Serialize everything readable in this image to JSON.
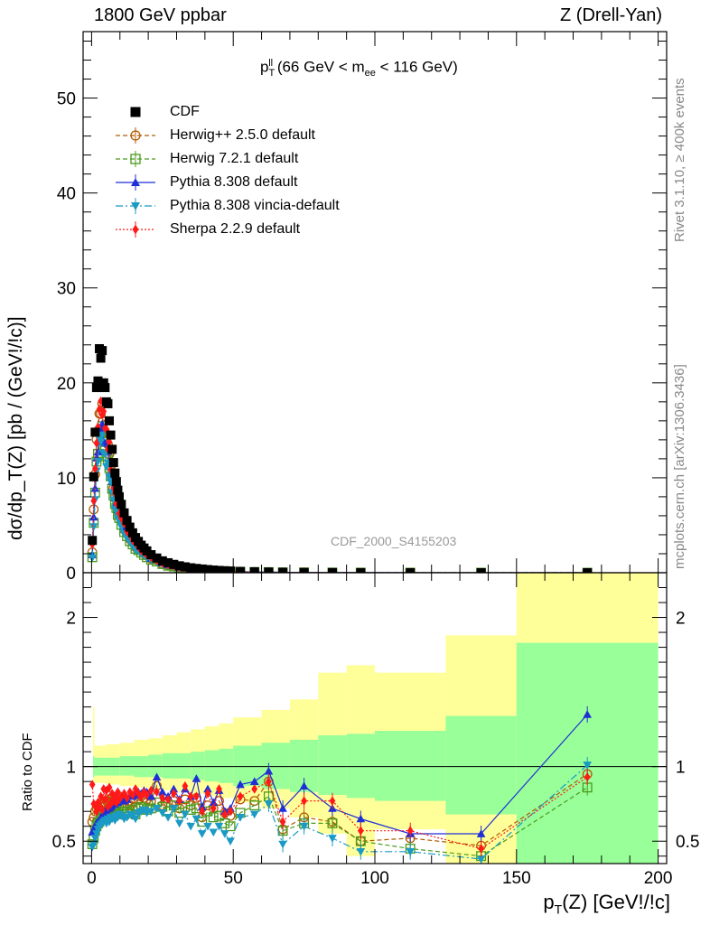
{
  "header": {
    "left": "1800 GeV ppbar",
    "right": "Z (Drell-Yan)"
  },
  "plot_title": {
    "p": "p",
    "sub": "T",
    "sup": "ll",
    "rest_a": " (66 GeV < m",
    "sub2": "ee",
    "rest_b": " < 116 GeV)"
  },
  "side_text": {
    "rivet": "Rivet 3.1.10, ≥ 400k events",
    "mcplots": "mcplots.cern.ch [arXiv:1306.3436]"
  },
  "analysis_id": "CDF_2000_S4155203",
  "colors": {
    "cdf": "#000000",
    "herwigpp": "#b35900",
    "herwig7": "#4a9a1c",
    "pythia": "#1f2fd6",
    "vincia": "#1a9ac4",
    "sherpa": "#ff1a1a",
    "band_inner": "#99ff99",
    "band_outer": "#ffff99"
  },
  "legend": [
    {
      "key": "cdf",
      "label": "CDF"
    },
    {
      "key": "herwigpp",
      "label": "Herwig++ 2.5.0 default"
    },
    {
      "key": "herwig7",
      "label": "Herwig 7.2.1 default"
    },
    {
      "key": "pythia",
      "label": "Pythia 8.308 default"
    },
    {
      "key": "vincia",
      "label": "Pythia 8.308 vincia-default"
    },
    {
      "key": "sherpa",
      "label": "Sherpa 2.2.9 default"
    }
  ],
  "axes": {
    "ylabel_main": "dσ/dp_T(Z) [pb / (GeV!/!c)]",
    "ylabel_ratio": "Ratio to CDF",
    "xlabel_p": "p",
    "xlabel_sub": "T",
    "xlabel_rest": "(Z) [GeV!/!c]"
  },
  "chart_data": {
    "type": "scatter",
    "title": "pT of Z, 66 GeV < m_ee < 116 GeV",
    "xlim": [
      -3,
      203
    ],
    "main": {
      "ylim": [
        0,
        57
      ],
      "yticks": [
        0,
        10,
        20,
        30,
        40,
        50
      ],
      "yticklabels": [
        "0",
        "10",
        "20",
        "30",
        "40",
        "50"
      ]
    },
    "ratio": {
      "ylim": [
        0.35,
        2.3
      ],
      "yticks": [
        0.5,
        1,
        2
      ],
      "yticklabels": [
        "0.5",
        "1",
        "2"
      ]
    },
    "xticks": [
      0,
      50,
      100,
      150,
      200
    ],
    "xticklabels": [
      "0",
      "50",
      "100",
      "150",
      "200"
    ],
    "x": [
      0.25,
      0.75,
      1.25,
      1.75,
      2.25,
      2.75,
      3.25,
      3.75,
      4.25,
      4.75,
      5.25,
      5.75,
      6.25,
      6.75,
      7.25,
      7.75,
      8.25,
      8.75,
      9.25,
      9.75,
      10.5,
      11.5,
      12.5,
      13.5,
      14.5,
      15.5,
      16.5,
      17.5,
      18.5,
      19.5,
      21,
      23,
      25,
      27,
      29,
      31,
      33,
      35,
      37,
      39,
      41,
      43,
      45,
      47,
      49,
      52.5,
      57.5,
      62.5,
      67.5,
      75,
      85,
      95,
      112.5,
      137.5,
      175
    ],
    "cdf_values": [
      3.4,
      10.1,
      14.8,
      19.5,
      20.2,
      23.6,
      22.6,
      23.4,
      20.0,
      19.5,
      18.0,
      17.8,
      16.0,
      14.5,
      13.0,
      11.6,
      10.5,
      9.6,
      8.7,
      8.0,
      7.2,
      6.3,
      5.5,
      4.8,
      4.2,
      3.7,
      3.3,
      2.9,
      2.6,
      2.3,
      1.9,
      1.55,
      1.25,
      1.05,
      0.88,
      0.73,
      0.62,
      0.52,
      0.45,
      0.39,
      0.33,
      0.28,
      0.24,
      0.21,
      0.18,
      0.14,
      0.1,
      0.075,
      0.055,
      0.038,
      0.022,
      0.014,
      0.007,
      0.003,
      0.001
    ],
    "series": [
      {
        "name": "Herwig++ 2.5.0 default",
        "key": "herwigpp",
        "marker": "open-circle",
        "line": "dashed",
        "ratio": [
          0.63,
          0.66,
          0.7,
          0.72,
          0.73,
          0.71,
          0.74,
          0.76,
          0.75,
          0.76,
          0.77,
          0.76,
          0.78,
          0.77,
          0.79,
          0.77,
          0.78,
          0.8,
          0.79,
          0.8,
          0.78,
          0.72,
          0.75,
          0.74,
          0.76,
          0.73,
          0.78,
          0.8,
          0.79,
          0.78,
          0.77,
          0.87,
          0.74,
          0.76,
          0.77,
          0.72,
          0.78,
          0.74,
          0.79,
          0.66,
          0.74,
          0.72,
          0.77,
          0.69,
          0.67,
          0.78,
          0.77,
          0.9,
          0.58,
          0.66,
          0.63,
          0.5,
          0.52,
          0.47,
          0.95
        ]
      },
      {
        "name": "Herwig 7.2.1 default",
        "key": "herwig7",
        "marker": "open-square",
        "line": "dashed",
        "ratio": [
          0.48,
          0.52,
          0.57,
          0.6,
          0.62,
          0.63,
          0.65,
          0.66,
          0.67,
          0.66,
          0.68,
          0.67,
          0.69,
          0.7,
          0.68,
          0.7,
          0.69,
          0.71,
          0.7,
          0.72,
          0.7,
          0.68,
          0.7,
          0.69,
          0.71,
          0.68,
          0.72,
          0.73,
          0.72,
          0.71,
          0.72,
          0.76,
          0.73,
          0.7,
          0.74,
          0.69,
          0.73,
          0.71,
          0.72,
          0.63,
          0.7,
          0.66,
          0.67,
          0.62,
          0.6,
          0.69,
          0.74,
          0.8,
          0.57,
          0.62,
          0.62,
          0.5,
          0.45,
          0.4,
          0.86
        ]
      },
      {
        "name": "Pythia 8.308 default",
        "key": "pythia",
        "marker": "triangle-up",
        "line": "solid",
        "ratio": [
          0.56,
          0.58,
          0.6,
          0.62,
          0.63,
          0.64,
          0.66,
          0.67,
          0.69,
          0.7,
          0.71,
          0.72,
          0.72,
          0.73,
          0.74,
          0.75,
          0.75,
          0.77,
          0.76,
          0.78,
          0.79,
          0.77,
          0.78,
          0.8,
          0.8,
          0.81,
          0.83,
          0.82,
          0.84,
          0.83,
          0.8,
          0.93,
          0.83,
          0.8,
          0.85,
          0.78,
          0.85,
          0.8,
          0.92,
          0.73,
          0.85,
          0.76,
          0.84,
          0.7,
          0.72,
          0.88,
          0.9,
          0.97,
          0.72,
          0.87,
          0.72,
          0.65,
          0.55,
          0.55,
          1.35
        ]
      },
      {
        "name": "Pythia 8.308 vincia-default",
        "key": "vincia",
        "marker": "triangle-down",
        "line": "dashdot",
        "ratio": [
          0.46,
          0.48,
          0.52,
          0.55,
          0.58,
          0.6,
          0.61,
          0.62,
          0.63,
          0.64,
          0.62,
          0.65,
          0.63,
          0.66,
          0.65,
          0.66,
          0.64,
          0.67,
          0.66,
          0.68,
          0.67,
          0.65,
          0.66,
          0.68,
          0.67,
          0.65,
          0.69,
          0.7,
          0.71,
          0.69,
          0.7,
          0.72,
          0.69,
          0.66,
          0.72,
          0.62,
          0.68,
          0.6,
          0.65,
          0.55,
          0.6,
          0.56,
          0.6,
          0.55,
          0.5,
          0.66,
          0.68,
          0.75,
          0.48,
          0.6,
          0.52,
          0.43,
          0.43,
          0.38,
          1.01
        ]
      },
      {
        "name": "Sherpa 2.2.9 default",
        "key": "sherpa",
        "marker": "diamond",
        "line": "dotted",
        "ratio": [
          0.88,
          0.75,
          0.74,
          0.7,
          0.76,
          0.73,
          0.8,
          0.71,
          0.85,
          0.78,
          0.84,
          0.73,
          0.86,
          0.75,
          0.82,
          0.77,
          0.8,
          0.76,
          0.83,
          0.78,
          0.8,
          0.82,
          0.79,
          0.83,
          0.81,
          0.85,
          0.82,
          0.8,
          0.83,
          0.81,
          0.84,
          0.83,
          0.79,
          0.78,
          0.82,
          0.77,
          0.87,
          0.8,
          0.8,
          0.7,
          0.82,
          0.72,
          0.85,
          0.68,
          0.7,
          0.8,
          0.85,
          0.9,
          0.63,
          0.77,
          0.77,
          0.57,
          0.57,
          0.45,
          0.93
        ]
      }
    ],
    "bands": [
      {
        "x0": 0.5,
        "x1": 1,
        "inner": [
          0.93,
          1.07
        ],
        "outer": [
          0.86,
          1.4
        ]
      },
      {
        "x0": 1,
        "x1": 5,
        "inner": [
          0.94,
          1.06
        ],
        "outer": [
          0.89,
          1.14
        ]
      },
      {
        "x0": 5,
        "x1": 10,
        "inner": [
          0.94,
          1.06
        ],
        "outer": [
          0.88,
          1.15
        ]
      },
      {
        "x0": 10,
        "x1": 15,
        "inner": [
          0.94,
          1.07
        ],
        "outer": [
          0.87,
          1.16
        ]
      },
      {
        "x0": 15,
        "x1": 20,
        "inner": [
          0.93,
          1.07
        ],
        "outer": [
          0.86,
          1.18
        ]
      },
      {
        "x0": 20,
        "x1": 25,
        "inner": [
          0.93,
          1.08
        ],
        "outer": [
          0.85,
          1.19
        ]
      },
      {
        "x0": 25,
        "x1": 30,
        "inner": [
          0.92,
          1.09
        ],
        "outer": [
          0.84,
          1.21
        ]
      },
      {
        "x0": 30,
        "x1": 35,
        "inner": [
          0.92,
          1.09
        ],
        "outer": [
          0.83,
          1.23
        ]
      },
      {
        "x0": 35,
        "x1": 40,
        "inner": [
          0.91,
          1.1
        ],
        "outer": [
          0.82,
          1.25
        ]
      },
      {
        "x0": 40,
        "x1": 45,
        "inner": [
          0.9,
          1.11
        ],
        "outer": [
          0.8,
          1.27
        ]
      },
      {
        "x0": 45,
        "x1": 50,
        "inner": [
          0.89,
          1.12
        ],
        "outer": [
          0.79,
          1.29
        ]
      },
      {
        "x0": 50,
        "x1": 60,
        "inner": [
          0.87,
          1.14
        ],
        "outer": [
          0.76,
          1.33
        ]
      },
      {
        "x0": 60,
        "x1": 70,
        "inner": [
          0.85,
          1.16
        ],
        "outer": [
          0.72,
          1.38
        ]
      },
      {
        "x0": 70,
        "x1": 80,
        "inner": [
          0.83,
          1.18
        ],
        "outer": [
          0.66,
          1.45
        ]
      },
      {
        "x0": 80,
        "x1": 90,
        "inner": [
          0.81,
          1.21
        ],
        "outer": [
          0.55,
          1.63
        ]
      },
      {
        "x0": 90,
        "x1": 100,
        "inner": [
          0.79,
          1.22
        ],
        "outer": [
          0.4,
          1.68
        ]
      },
      {
        "x0": 100,
        "x1": 125,
        "inner": [
          0.77,
          1.24
        ],
        "outer": [
          0.58,
          1.63
        ]
      },
      {
        "x0": 125,
        "x1": 150,
        "inner": [
          0.68,
          1.34
        ],
        "outer": [
          0.35,
          1.88
        ]
      },
      {
        "x0": 150,
        "x1": 200,
        "inner": [
          0.35,
          1.83
        ],
        "outer": [
          0.35,
          2.3
        ]
      }
    ]
  }
}
